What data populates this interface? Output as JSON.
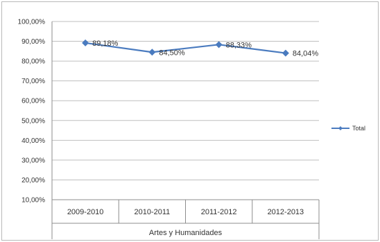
{
  "chart_data": {
    "type": "line",
    "categories": [
      "2009-2010",
      "2010-2011",
      "2011-2012",
      "2012-2013"
    ],
    "group_label": "Artes y Humanidades",
    "series": [
      {
        "name": "Total",
        "values": [
          89.18,
          84.5,
          88.33,
          84.04
        ],
        "labels": [
          "89,18%",
          "84,50%",
          "88,33%",
          "84,04%"
        ],
        "color": "#4a7bbf"
      }
    ],
    "y_ticks": [
      "100,00%",
      "90,00%",
      "80,00%",
      "70,00%",
      "60,00%",
      "50,00%",
      "40,00%",
      "30,00%",
      "20,00%",
      "10,00%"
    ],
    "ylim": [
      10,
      100
    ],
    "grid": true,
    "legend_position": "right"
  }
}
